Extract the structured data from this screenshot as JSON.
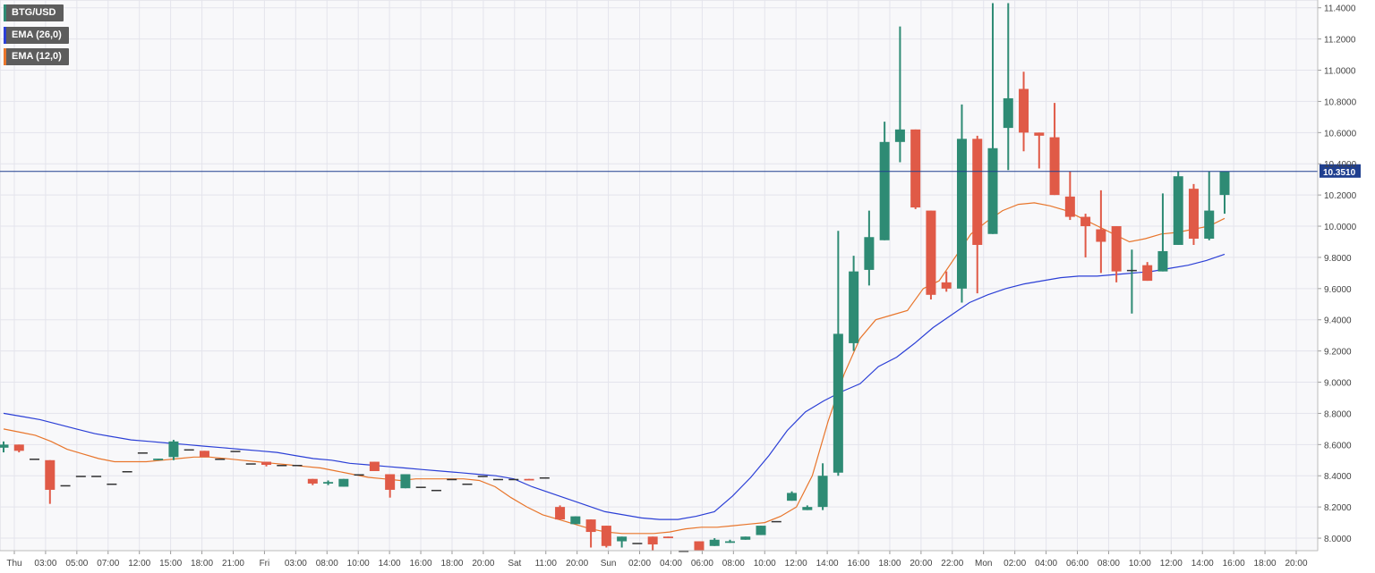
{
  "chart_data": {
    "type": "candlestick",
    "symbol": "BTG/USD",
    "legend": [
      {
        "label": "BTG/USD",
        "color": "#2e8b74"
      },
      {
        "label": "EMA (26,0)",
        "color": "#2b3fd6"
      },
      {
        "label": "EMA (12,0)",
        "color": "#e8752b"
      }
    ],
    "y_axis": {
      "position": "right",
      "min": 7.92,
      "max": 11.45,
      "ticks": [
        "8.0000",
        "8.2000",
        "8.4000",
        "8.6000",
        "8.8000",
        "9.0000",
        "9.2000",
        "9.4000",
        "9.6000",
        "9.8000",
        "10.0000",
        "10.2000",
        "10.4000",
        "10.6000",
        "10.8000",
        "11.0000",
        "11.2000",
        "11.4000"
      ]
    },
    "x_axis": {
      "labels": [
        "Thu",
        "03:00",
        "05:00",
        "07:00",
        "12:00",
        "15:00",
        "18:00",
        "21:00",
        "Fri",
        "03:00",
        "08:00",
        "10:00",
        "14:00",
        "16:00",
        "18:00",
        "20:00",
        "Sat",
        "11:00",
        "20:00",
        "Sun",
        "02:00",
        "04:00",
        "06:00",
        "08:00",
        "10:00",
        "12:00",
        "14:00",
        "16:00",
        "18:00",
        "20:00",
        "22:00",
        "Mon",
        "02:00",
        "04:00",
        "06:00",
        "08:00",
        "10:00",
        "12:00",
        "14:00",
        "16:00",
        "18:00",
        "20:00"
      ]
    },
    "grid": true,
    "current_price": {
      "value": 10.351,
      "label": "10.3510",
      "color": "#1f3f8f"
    },
    "colors": {
      "up": "#2e8b74",
      "down": "#e05a47",
      "ema26": "#2b3fd6",
      "ema12": "#e8752b"
    },
    "candles": [
      {
        "o": 8.58,
        "h": 8.62,
        "l": 8.55,
        "c": 8.6
      },
      {
        "o": 8.6,
        "h": 8.6,
        "l": 8.55,
        "c": 8.56
      },
      {
        "o": 8.51,
        "h": 8.51,
        "l": 8.51,
        "c": 8.51
      },
      {
        "o": 8.5,
        "h": 8.5,
        "l": 8.22,
        "c": 8.31
      },
      {
        "o": 8.34,
        "h": 8.34,
        "l": 8.34,
        "c": 8.34
      },
      {
        "o": 8.4,
        "h": 8.4,
        "l": 8.4,
        "c": 8.4
      },
      {
        "o": 8.4,
        "h": 8.4,
        "l": 8.4,
        "c": 8.4
      },
      {
        "o": 8.35,
        "h": 8.35,
        "l": 8.35,
        "c": 8.35
      },
      {
        "o": 8.43,
        "h": 8.43,
        "l": 8.43,
        "c": 8.43
      },
      {
        "o": 8.55,
        "h": 8.55,
        "l": 8.55,
        "c": 8.55
      },
      {
        "o": 8.5,
        "h": 8.51,
        "l": 8.5,
        "c": 8.51
      },
      {
        "o": 8.52,
        "h": 8.63,
        "l": 8.5,
        "c": 8.62
      },
      {
        "o": 8.57,
        "h": 8.57,
        "l": 8.57,
        "c": 8.57
      },
      {
        "o": 8.56,
        "h": 8.56,
        "l": 8.52,
        "c": 8.52
      },
      {
        "o": 8.51,
        "h": 8.51,
        "l": 8.51,
        "c": 8.51
      },
      {
        "o": 8.56,
        "h": 8.56,
        "l": 8.56,
        "c": 8.56
      },
      {
        "o": 8.48,
        "h": 8.48,
        "l": 8.48,
        "c": 8.48
      },
      {
        "o": 8.49,
        "h": 8.49,
        "l": 8.46,
        "c": 8.47
      },
      {
        "o": 8.47,
        "h": 8.47,
        "l": 8.47,
        "c": 8.47
      },
      {
        "o": 8.47,
        "h": 8.47,
        "l": 8.47,
        "c": 8.47
      },
      {
        "o": 8.38,
        "h": 8.38,
        "l": 8.34,
        "c": 8.35
      },
      {
        "o": 8.35,
        "h": 8.37,
        "l": 8.34,
        "c": 8.36
      },
      {
        "o": 8.33,
        "h": 8.38,
        "l": 8.33,
        "c": 8.38
      },
      {
        "o": 8.41,
        "h": 8.41,
        "l": 8.41,
        "c": 8.41
      },
      {
        "o": 8.49,
        "h": 8.49,
        "l": 8.43,
        "c": 8.43
      },
      {
        "o": 8.41,
        "h": 8.41,
        "l": 8.26,
        "c": 8.31
      },
      {
        "o": 8.32,
        "h": 8.41,
        "l": 8.32,
        "c": 8.41
      },
      {
        "o": 8.33,
        "h": 8.33,
        "l": 8.33,
        "c": 8.33
      },
      {
        "o": 8.31,
        "h": 8.31,
        "l": 8.31,
        "c": 8.31
      },
      {
        "o": 8.38,
        "h": 8.38,
        "l": 8.38,
        "c": 8.38
      },
      {
        "o": 8.35,
        "h": 8.35,
        "l": 8.35,
        "c": 8.35
      },
      {
        "o": 8.4,
        "h": 8.4,
        "l": 8.4,
        "c": 8.4
      },
      {
        "o": 8.38,
        "h": 8.38,
        "l": 8.38,
        "c": 8.38
      },
      {
        "o": 8.38,
        "h": 8.38,
        "l": 8.38,
        "c": 8.38
      },
      {
        "o": 8.38,
        "h": 8.38,
        "l": 8.37,
        "c": 8.37
      },
      {
        "o": 8.39,
        "h": 8.39,
        "l": 8.39,
        "c": 8.39
      },
      {
        "o": 8.2,
        "h": 8.21,
        "l": 8.12,
        "c": 8.12
      },
      {
        "o": 8.09,
        "h": 8.14,
        "l": 8.09,
        "c": 8.14
      },
      {
        "o": 8.12,
        "h": 8.12,
        "l": 7.94,
        "c": 8.04
      },
      {
        "o": 8.08,
        "h": 8.08,
        "l": 7.94,
        "c": 7.95
      },
      {
        "o": 7.98,
        "h": 8.01,
        "l": 7.94,
        "c": 8.01
      },
      {
        "o": 7.97,
        "h": 7.97,
        "l": 7.97,
        "c": 7.97
      },
      {
        "o": 8.01,
        "h": 8.01,
        "l": 7.92,
        "c": 7.96
      },
      {
        "o": 8.01,
        "h": 8.01,
        "l": 8.0,
        "c": 8.0
      },
      {
        "o": 7.92,
        "h": 7.92,
        "l": 7.92,
        "c": 7.92
      },
      {
        "o": 7.98,
        "h": 7.98,
        "l": 7.92,
        "c": 7.92
      },
      {
        "o": 7.95,
        "h": 8.0,
        "l": 7.95,
        "c": 7.99
      },
      {
        "o": 7.97,
        "h": 7.99,
        "l": 7.97,
        "c": 7.98
      },
      {
        "o": 7.99,
        "h": 8.01,
        "l": 7.99,
        "c": 8.01
      },
      {
        "o": 8.02,
        "h": 8.08,
        "l": 8.02,
        "c": 8.08
      },
      {
        "o": 8.11,
        "h": 8.11,
        "l": 8.11,
        "c": 8.11
      },
      {
        "o": 8.24,
        "h": 8.3,
        "l": 8.24,
        "c": 8.29
      },
      {
        "o": 8.18,
        "h": 8.21,
        "l": 8.18,
        "c": 8.2
      },
      {
        "o": 8.2,
        "h": 8.48,
        "l": 8.18,
        "c": 8.4
      },
      {
        "o": 8.42,
        "h": 9.97,
        "l": 8.4,
        "c": 9.31
      },
      {
        "o": 9.25,
        "h": 9.81,
        "l": 9.2,
        "c": 9.71
      },
      {
        "o": 9.72,
        "h": 10.1,
        "l": 9.62,
        "c": 9.93
      },
      {
        "o": 9.91,
        "h": 10.67,
        "l": 9.91,
        "c": 10.54
      },
      {
        "o": 10.54,
        "h": 11.28,
        "l": 10.41,
        "c": 10.62
      },
      {
        "o": 10.62,
        "h": 10.62,
        "l": 10.11,
        "c": 10.12
      },
      {
        "o": 10.1,
        "h": 10.1,
        "l": 9.53,
        "c": 9.56
      },
      {
        "o": 9.64,
        "h": 9.71,
        "l": 9.58,
        "c": 9.6
      },
      {
        "o": 9.6,
        "h": 10.78,
        "l": 9.51,
        "c": 10.56
      },
      {
        "o": 10.56,
        "h": 10.58,
        "l": 9.57,
        "c": 9.88
      },
      {
        "o": 9.95,
        "h": 11.43,
        "l": 9.95,
        "c": 10.5
      },
      {
        "o": 10.63,
        "h": 11.43,
        "l": 10.36,
        "c": 10.82
      },
      {
        "o": 10.88,
        "h": 10.99,
        "l": 10.48,
        "c": 10.6
      },
      {
        "o": 10.6,
        "h": 10.6,
        "l": 10.37,
        "c": 10.58
      },
      {
        "o": 10.57,
        "h": 10.79,
        "l": 10.2,
        "c": 10.2
      },
      {
        "o": 10.19,
        "h": 10.35,
        "l": 10.04,
        "c": 10.06
      },
      {
        "o": 10.06,
        "h": 10.08,
        "l": 9.8,
        "c": 10.0
      },
      {
        "o": 9.98,
        "h": 10.23,
        "l": 9.7,
        "c": 9.9
      },
      {
        "o": 10.0,
        "h": 10.0,
        "l": 9.64,
        "c": 9.71
      },
      {
        "o": 9.72,
        "h": 9.85,
        "l": 9.44,
        "c": 9.72
      },
      {
        "o": 9.75,
        "h": 9.77,
        "l": 9.65,
        "c": 9.65
      },
      {
        "o": 9.71,
        "h": 10.21,
        "l": 9.71,
        "c": 9.84
      },
      {
        "o": 9.88,
        "h": 10.35,
        "l": 9.88,
        "c": 10.32
      },
      {
        "o": 10.24,
        "h": 10.27,
        "l": 9.88,
        "c": 9.92
      },
      {
        "o": 9.92,
        "h": 10.35,
        "l": 9.91,
        "c": 10.1
      },
      {
        "o": 10.2,
        "h": 10.35,
        "l": 10.08,
        "c": 10.35
      }
    ],
    "ema26": [
      8.8,
      8.78,
      8.76,
      8.73,
      8.7,
      8.67,
      8.65,
      8.63,
      8.62,
      8.61,
      8.6,
      8.59,
      8.58,
      8.57,
      8.56,
      8.55,
      8.53,
      8.51,
      8.5,
      8.48,
      8.47,
      8.46,
      8.45,
      8.44,
      8.43,
      8.42,
      8.41,
      8.4,
      8.38,
      8.33,
      8.29,
      8.25,
      8.21,
      8.17,
      8.15,
      8.13,
      8.12,
      8.12,
      8.14,
      8.17,
      8.27,
      8.39,
      8.53,
      8.69,
      8.81,
      8.88,
      8.94,
      8.99,
      9.1,
      9.16,
      9.25,
      9.35,
      9.43,
      9.51,
      9.56,
      9.6,
      9.63,
      9.65,
      9.67,
      9.68,
      9.68,
      9.69,
      9.7,
      9.71,
      9.73,
      9.75,
      9.78,
      9.82
    ],
    "ema12": [
      8.7,
      8.68,
      8.66,
      8.62,
      8.57,
      8.54,
      8.51,
      8.49,
      8.49,
      8.49,
      8.5,
      8.51,
      8.52,
      8.52,
      8.51,
      8.5,
      8.49,
      8.48,
      8.47,
      8.46,
      8.45,
      8.43,
      8.41,
      8.39,
      8.38,
      8.37,
      8.38,
      8.38,
      8.38,
      8.38,
      8.37,
      8.33,
      8.26,
      8.2,
      8.15,
      8.12,
      8.09,
      8.06,
      8.04,
      8.03,
      8.03,
      8.03,
      8.04,
      8.06,
      8.07,
      8.07,
      8.08,
      8.09,
      8.1,
      8.14,
      8.2,
      8.4,
      8.75,
      9.05,
      9.28,
      9.4,
      9.43,
      9.46,
      9.6,
      9.65,
      9.8,
      9.95,
      10.03,
      10.1,
      10.14,
      10.15,
      10.13,
      10.1,
      10.05,
      10.0,
      9.95,
      9.9,
      9.92,
      9.95,
      9.96,
      9.98,
      10.0,
      10.05
    ]
  }
}
